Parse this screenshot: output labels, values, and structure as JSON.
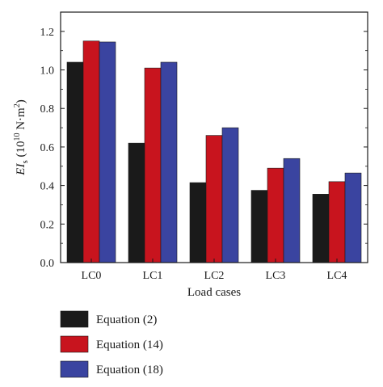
{
  "chart_data": {
    "type": "bar",
    "xlabel": "Load cases",
    "ylabel": {
      "main": "EI",
      "subscript": "s",
      "unit_open": " (10",
      "unit_exp": "10",
      "unit_mid": " N·m",
      "unit_exp2": "2",
      "unit_close": ")"
    },
    "categories": [
      "LC0",
      "LC1",
      "LC2",
      "LC3",
      "LC4"
    ],
    "ylim": [
      0,
      1.3
    ],
    "yticks": [
      "0.0",
      "0.2",
      "0.4",
      "0.6",
      "0.8",
      "1.0",
      "1.2"
    ],
    "grid": false,
    "legend_position": "bottom-left, below plot",
    "series": [
      {
        "name": "Equation (2)",
        "color": "#1a1a1a",
        "values": [
          1.04,
          0.62,
          0.415,
          0.375,
          0.355
        ]
      },
      {
        "name": "Equation (14)",
        "color": "#c8141e",
        "values": [
          1.15,
          1.01,
          0.66,
          0.49,
          0.42
        ]
      },
      {
        "name": "Equation (18)",
        "color": "#3a44a0",
        "values": [
          1.145,
          1.04,
          0.7,
          0.54,
          0.465
        ]
      }
    ]
  }
}
